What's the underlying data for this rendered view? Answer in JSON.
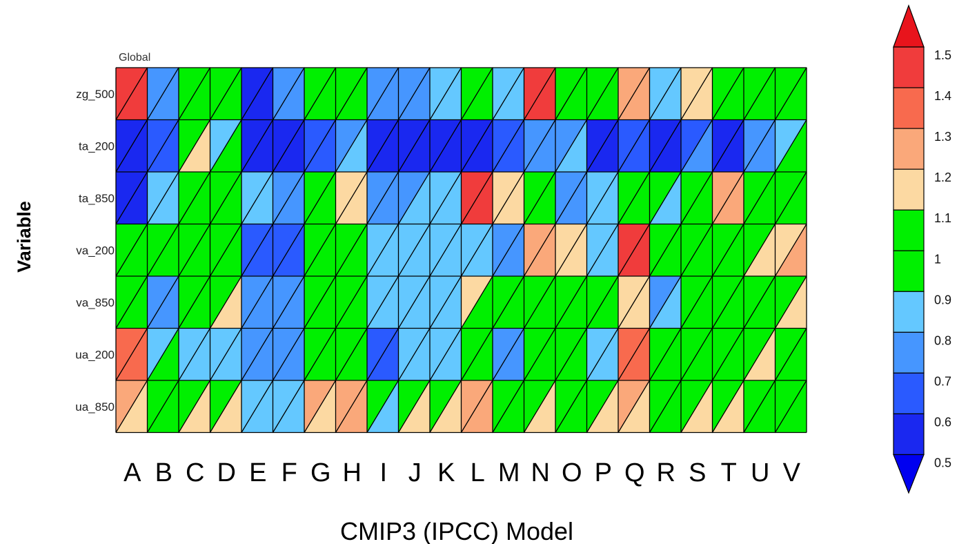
{
  "chart_data": {
    "type": "heatmap",
    "title": "Global",
    "xlabel": "CMIP3 (IPCC) Model",
    "ylabel": "Variable",
    "columns": [
      "A",
      "B",
      "C",
      "D",
      "E",
      "F",
      "G",
      "H",
      "I",
      "J",
      "K",
      "L",
      "M",
      "N",
      "O",
      "P",
      "Q",
      "R",
      "S",
      "T",
      "U",
      "V"
    ],
    "rows": [
      "zg_500",
      "ta_200",
      "ta_850",
      "va_200",
      "va_850",
      "ua_200",
      "ua_850"
    ],
    "cell_split": "each cell split diagonally into upper-left and lower-right triangles",
    "upper_triangle_values": [
      [
        1.45,
        0.75,
        0.95,
        0.95,
        0.55,
        0.75,
        0.95,
        0.95,
        0.75,
        0.75,
        0.85,
        0.95,
        0.85,
        1.45,
        0.95,
        0.95,
        1.25,
        0.85,
        1.15,
        0.95,
        0.95,
        0.95
      ],
      [
        0.55,
        0.65,
        0.95,
        0.85,
        0.55,
        0.55,
        0.65,
        0.75,
        0.55,
        0.55,
        0.55,
        0.55,
        0.65,
        0.75,
        0.75,
        0.55,
        0.65,
        0.55,
        0.65,
        0.55,
        0.75,
        0.85
      ],
      [
        0.55,
        0.85,
        0.95,
        0.95,
        0.85,
        0.75,
        0.95,
        1.15,
        0.75,
        0.75,
        0.85,
        1.45,
        1.15,
        0.95,
        0.75,
        0.85,
        0.95,
        0.95,
        0.95,
        1.25,
        0.95,
        0.95
      ],
      [
        0.95,
        0.95,
        0.95,
        0.95,
        0.65,
        0.65,
        0.95,
        0.95,
        0.85,
        0.85,
        0.85,
        0.85,
        0.75,
        1.25,
        1.15,
        0.85,
        1.45,
        0.95,
        0.95,
        0.95,
        0.95,
        1.15
      ],
      [
        0.95,
        0.75,
        0.95,
        0.95,
        0.75,
        0.75,
        0.95,
        0.95,
        0.85,
        0.85,
        0.85,
        1.15,
        0.95,
        0.95,
        0.95,
        0.95,
        1.15,
        0.75,
        0.95,
        0.95,
        0.95,
        0.95
      ],
      [
        1.35,
        0.85,
        0.85,
        0.85,
        0.75,
        0.75,
        0.95,
        0.95,
        0.65,
        0.85,
        0.85,
        0.95,
        0.75,
        0.95,
        0.95,
        0.85,
        1.35,
        0.95,
        0.95,
        0.95,
        0.95,
        0.95
      ],
      [
        1.25,
        0.95,
        0.95,
        0.95,
        0.85,
        0.85,
        1.25,
        1.25,
        0.95,
        0.95,
        0.95,
        1.25,
        0.95,
        0.95,
        0.95,
        0.95,
        1.25,
        0.95,
        0.95,
        0.95,
        0.95,
        0.95
      ]
    ],
    "lower_triangle_values": [
      [
        1.45,
        0.75,
        0.95,
        0.95,
        0.55,
        0.75,
        0.95,
        0.95,
        0.75,
        0.75,
        0.85,
        0.95,
        0.85,
        1.45,
        0.95,
        0.95,
        1.25,
        0.85,
        1.15,
        0.95,
        0.95,
        0.95
      ],
      [
        0.55,
        0.65,
        1.15,
        0.95,
        0.55,
        0.55,
        0.65,
        0.85,
        0.55,
        0.55,
        0.55,
        0.55,
        0.65,
        0.75,
        0.85,
        0.55,
        0.65,
        0.55,
        0.75,
        0.55,
        0.75,
        0.95
      ],
      [
        0.55,
        0.85,
        0.95,
        0.95,
        0.85,
        0.75,
        0.95,
        1.15,
        0.75,
        0.85,
        0.85,
        1.45,
        1.15,
        0.95,
        0.75,
        0.85,
        0.95,
        0.85,
        0.95,
        1.25,
        0.95,
        0.95
      ],
      [
        0.95,
        0.95,
        0.95,
        0.95,
        0.65,
        0.65,
        0.95,
        0.95,
        0.85,
        0.85,
        0.85,
        0.85,
        0.75,
        1.25,
        1.15,
        0.85,
        1.45,
        0.95,
        0.95,
        0.95,
        1.15,
        1.25
      ],
      [
        0.95,
        0.75,
        0.95,
        1.15,
        0.75,
        0.75,
        0.95,
        0.95,
        0.85,
        0.85,
        0.85,
        0.95,
        0.95,
        0.95,
        0.95,
        0.95,
        1.15,
        0.85,
        0.95,
        0.95,
        0.95,
        1.15
      ],
      [
        1.35,
        0.95,
        0.85,
        0.85,
        0.75,
        0.75,
        0.95,
        0.95,
        0.65,
        0.85,
        0.85,
        0.95,
        0.75,
        0.95,
        0.95,
        0.85,
        1.35,
        0.95,
        0.95,
        0.95,
        1.15,
        0.95
      ],
      [
        1.15,
        0.95,
        1.15,
        1.15,
        0.85,
        0.85,
        1.15,
        1.25,
        0.85,
        1.15,
        1.15,
        1.25,
        0.95,
        1.15,
        0.95,
        1.15,
        1.15,
        0.95,
        1.15,
        1.15,
        0.95,
        0.95
      ]
    ],
    "colorbar": {
      "ticks": [
        "1.5",
        "1.4",
        "1.3",
        "1.2",
        "1.1",
        "1",
        "0.9",
        "0.8",
        "0.7",
        "0.6",
        "0.5"
      ],
      "range": [
        0.5,
        1.5
      ],
      "step": 0.1,
      "extend": "both",
      "placement": "right",
      "bins_high_to_low": [
        "#e8141c",
        "#f03c3c",
        "#f86a4e",
        "#faa87a",
        "#fcd9a2",
        "#00f000",
        "#00f000",
        "#64c8ff",
        "#4696ff",
        "#2a5aff",
        "#1a28f0",
        "#0000f0"
      ],
      "over_color": "#e8141c",
      "under_color": "#0000f0"
    },
    "grid": "black cell borders"
  }
}
